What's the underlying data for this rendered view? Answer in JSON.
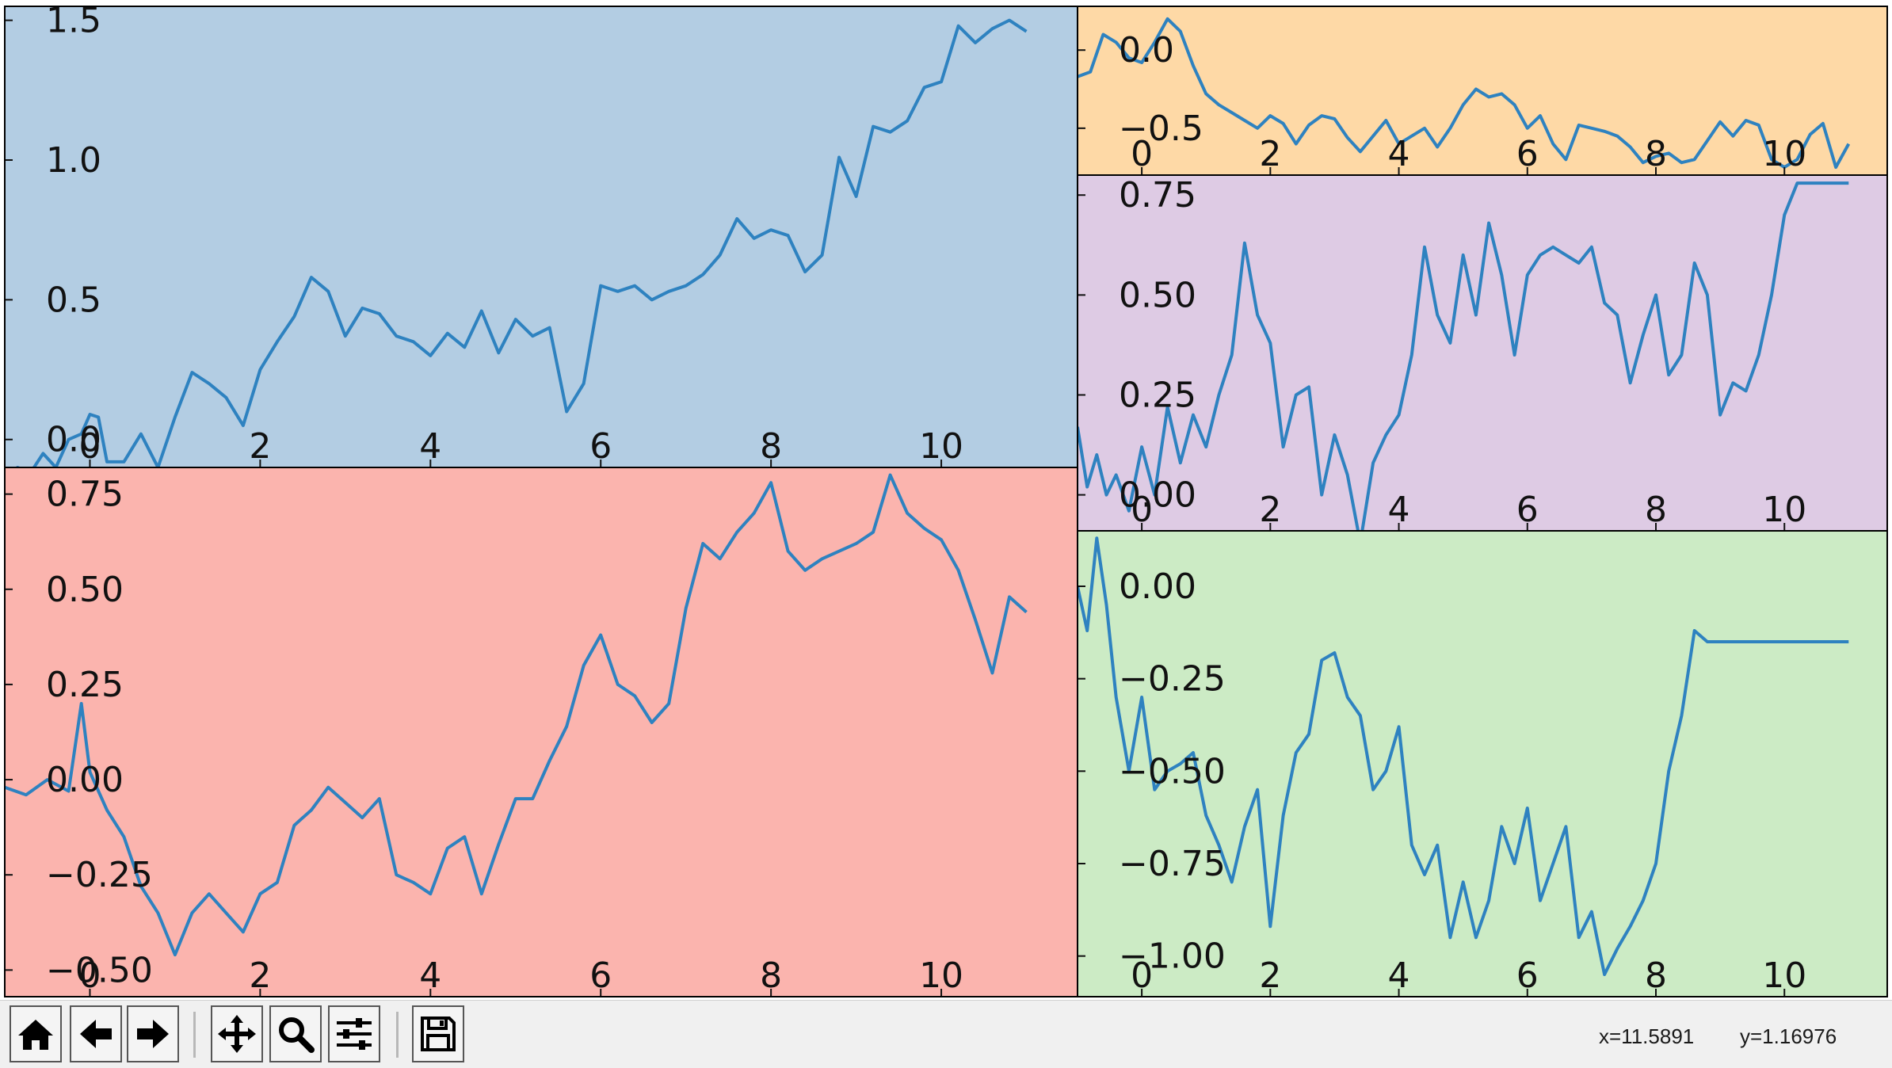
{
  "colors": {
    "line": "#2e82c0",
    "frame": "#000000",
    "ticks": "#111111",
    "toolbar_bg": "#f0f0f0"
  },
  "toolbar": {
    "buttons": [
      {
        "name": "home-button",
        "icon": "home-icon"
      },
      {
        "name": "back-button",
        "icon": "arrow-left-icon"
      },
      {
        "name": "forward-button",
        "icon": "arrow-right-icon"
      },
      {
        "name": "pan-button",
        "icon": "move-icon"
      },
      {
        "name": "zoom-button",
        "icon": "search-icon"
      },
      {
        "name": "configure-subplots-button",
        "icon": "sliders-icon"
      },
      {
        "name": "save-button",
        "icon": "floppy-disk-icon"
      }
    ]
  },
  "status": {
    "x": "x=11.5891",
    "y": "y=1.16976"
  },
  "chart_data": [
    {
      "type": "line",
      "name": "subplot-top-left",
      "background": "#b3cde3",
      "xlim": [
        -1,
        11.6
      ],
      "ylim": [
        -0.1,
        1.55
      ],
      "xticks": [
        0,
        2,
        4,
        6,
        8,
        10
      ],
      "xtick_labels": [
        "0",
        "2",
        "4",
        "6",
        "8",
        "10"
      ],
      "yticks": [
        0.0,
        0.5,
        1.0,
        1.5
      ],
      "ytick_labels": [
        "0.0",
        "0.5",
        "1.0",
        "1.5"
      ],
      "x": [
        -1,
        -0.85,
        -0.7,
        -0.55,
        -0.4,
        -0.25,
        -0.1,
        0,
        0.1,
        0.2,
        0.4,
        0.6,
        0.8,
        1,
        1.2,
        1.4,
        1.6,
        1.8,
        2,
        2.2,
        2.4,
        2.6,
        2.8,
        3,
        3.2,
        3.4,
        3.6,
        3.8,
        4,
        4.2,
        4.4,
        4.6,
        4.8,
        5,
        5.2,
        5.4,
        5.6,
        5.8,
        6,
        6.2,
        6.4,
        6.6,
        6.8,
        7,
        7.2,
        7.4,
        7.6,
        7.8,
        8,
        8.2,
        8.4,
        8.6,
        8.8,
        9,
        9.2,
        9.4,
        9.6,
        9.8,
        10,
        10.2,
        10.4,
        10.6,
        10.8,
        11
      ],
      "y": [
        -0.13,
        -0.1,
        -0.12,
        -0.05,
        -0.1,
        0,
        0.02,
        0.09,
        0.08,
        -0.08,
        -0.08,
        0.02,
        -0.1,
        0.08,
        0.24,
        0.2,
        0.15,
        0.05,
        0.25,
        0.35,
        0.44,
        0.58,
        0.53,
        0.37,
        0.47,
        0.45,
        0.37,
        0.35,
        0.3,
        0.38,
        0.33,
        0.46,
        0.31,
        0.43,
        0.37,
        0.4,
        0.1,
        0.2,
        0.55,
        0.53,
        0.55,
        0.5,
        0.53,
        0.55,
        0.59,
        0.66,
        0.79,
        0.72,
        0.75,
        0.73,
        0.6,
        0.66,
        1.01,
        0.87,
        1.12,
        1.1,
        1.14,
        1.26,
        1.28,
        1.48,
        1.42,
        1.47,
        1.5,
        1.46
      ]
    },
    {
      "type": "line",
      "name": "subplot-bottom-left",
      "background": "#fbb4ae",
      "xlim": [
        -1,
        11.6
      ],
      "ylim": [
        -0.57,
        0.82
      ],
      "xticks": [
        0,
        2,
        4,
        6,
        8,
        10
      ],
      "xtick_labels": [
        "0",
        "2",
        "4",
        "6",
        "8",
        "10"
      ],
      "yticks": [
        -0.5,
        -0.25,
        0.0,
        0.25,
        0.5,
        0.75
      ],
      "ytick_labels": [
        "−0.50",
        "−0.25",
        "0.00",
        "0.25",
        "0.50",
        "0.75"
      ],
      "x": [
        -1,
        -0.75,
        -0.5,
        -0.25,
        -0.1,
        0,
        0.2,
        0.4,
        0.6,
        0.8,
        1,
        1.2,
        1.4,
        1.6,
        1.8,
        2,
        2.2,
        2.4,
        2.6,
        2.8,
        3,
        3.2,
        3.4,
        3.6,
        3.8,
        4,
        4.2,
        4.4,
        4.6,
        4.8,
        5,
        5.2,
        5.4,
        5.6,
        5.8,
        6,
        6.2,
        6.4,
        6.6,
        6.8,
        7,
        7.2,
        7.4,
        7.6,
        7.8,
        8,
        8.2,
        8.4,
        8.6,
        8.8,
        9,
        9.2,
        9.4,
        9.6,
        9.8,
        10,
        10.2,
        10.4,
        10.6,
        10.8,
        11
      ],
      "y": [
        -0.02,
        -0.04,
        0.0,
        -0.03,
        0.2,
        0.02,
        -0.08,
        -0.15,
        -0.28,
        -0.35,
        -0.46,
        -0.35,
        -0.3,
        -0.35,
        -0.4,
        -0.3,
        -0.27,
        -0.12,
        -0.08,
        -0.02,
        -0.06,
        -0.1,
        -0.05,
        -0.25,
        -0.27,
        -0.3,
        -0.18,
        -0.15,
        -0.3,
        -0.17,
        -0.05,
        -0.05,
        0.05,
        0.14,
        0.3,
        0.38,
        0.25,
        0.22,
        0.15,
        0.2,
        0.45,
        0.62,
        0.58,
        0.65,
        0.7,
        0.78,
        0.6,
        0.55,
        0.58,
        0.6,
        0.62,
        0.65,
        0.8,
        0.7,
        0.66,
        0.63,
        0.55,
        0.42,
        0.28,
        0.48,
        0.44
      ]
    },
    {
      "type": "line",
      "name": "subplot-top-right",
      "background": "#fed9a6",
      "xlim": [
        -1,
        11.6
      ],
      "ylim": [
        -0.8,
        0.28
      ],
      "xticks": [
        0,
        2,
        4,
        6,
        8,
        10
      ],
      "xtick_labels": [
        "0",
        "2",
        "4",
        "6",
        "8",
        "10"
      ],
      "yticks": [
        -0.5,
        0.0
      ],
      "ytick_labels": [
        "−0.5",
        "0.0"
      ],
      "x": [
        -1,
        -0.8,
        -0.6,
        -0.4,
        -0.2,
        0,
        0.2,
        0.4,
        0.6,
        0.8,
        1,
        1.2,
        1.4,
        1.6,
        1.8,
        2,
        2.2,
        2.4,
        2.6,
        2.8,
        3,
        3.2,
        3.4,
        3.6,
        3.8,
        4,
        4.2,
        4.4,
        4.6,
        4.8,
        5,
        5.2,
        5.4,
        5.6,
        5.8,
        6,
        6.2,
        6.4,
        6.6,
        6.8,
        7,
        7.2,
        7.4,
        7.6,
        7.8,
        8,
        8.2,
        8.4,
        8.6,
        8.8,
        9,
        9.2,
        9.4,
        9.6,
        9.8,
        10,
        10.2,
        10.4,
        10.6,
        10.8,
        11
      ],
      "y": [
        -0.17,
        -0.14,
        0.1,
        0.05,
        -0.05,
        -0.08,
        0.05,
        0.2,
        0.12,
        -0.1,
        -0.28,
        -0.35,
        -0.4,
        -0.45,
        -0.5,
        -0.42,
        -0.47,
        -0.6,
        -0.48,
        -0.42,
        -0.44,
        -0.56,
        -0.65,
        -0.55,
        -0.45,
        -0.6,
        -0.55,
        -0.5,
        -0.62,
        -0.5,
        -0.35,
        -0.25,
        -0.3,
        -0.28,
        -0.35,
        -0.5,
        -0.42,
        -0.6,
        -0.7,
        -0.48,
        -0.5,
        -0.52,
        -0.55,
        -0.62,
        -0.72,
        -0.68,
        -0.66,
        -0.72,
        -0.7,
        -0.58,
        -0.46,
        -0.55,
        -0.45,
        -0.48,
        -0.7,
        -0.75,
        -0.7,
        -0.54,
        -0.47,
        -0.75,
        -0.6
      ]
    },
    {
      "type": "line",
      "name": "subplot-middle-right",
      "background": "#decbe4",
      "xlim": [
        -1,
        11.6
      ],
      "ylim": [
        -0.09,
        0.8
      ],
      "xticks": [
        0,
        2,
        4,
        6,
        8,
        10
      ],
      "xtick_labels": [
        "0",
        "2",
        "4",
        "6",
        "8",
        "10"
      ],
      "yticks": [
        0.0,
        0.25,
        0.5,
        0.75
      ],
      "ytick_labels": [
        "0.00",
        "0.25",
        "0.50",
        "0.75"
      ],
      "x": [
        -1,
        -0.85,
        -0.7,
        -0.55,
        -0.4,
        -0.2,
        0,
        0.2,
        0.4,
        0.6,
        0.8,
        1,
        1.2,
        1.4,
        1.6,
        1.8,
        2,
        2.2,
        2.4,
        2.6,
        2.8,
        3,
        3.2,
        3.4,
        3.6,
        3.8,
        4,
        4.2,
        4.4,
        4.6,
        4.8,
        5,
        5.2,
        5.4,
        5.6,
        5.8,
        6,
        6.2,
        6.4,
        6.6,
        6.8,
        7,
        7.2,
        7.4,
        7.6,
        7.8,
        8,
        8.2,
        8.4,
        8.6,
        8.8,
        9,
        9.2,
        9.4,
        9.6,
        9.8,
        10,
        10.2,
        10.4,
        10.6,
        10.8,
        11
      ],
      "y": [
        0.17,
        0.02,
        0.1,
        0.0,
        0.05,
        -0.04,
        0.12,
        0.0,
        0.22,
        0.08,
        0.2,
        0.12,
        0.25,
        0.35,
        0.63,
        0.45,
        0.38,
        0.12,
        0.25,
        0.27,
        0.0,
        0.15,
        0.05,
        -0.12,
        0.08,
        0.15,
        0.2,
        0.35,
        0.62,
        0.45,
        0.38,
        0.6,
        0.45,
        0.68,
        0.55,
        0.35,
        0.55,
        0.6,
        0.62,
        0.6,
        0.58,
        0.62,
        0.48,
        0.45,
        0.28,
        0.4,
        0.5,
        0.3,
        0.35,
        0.58,
        0.5,
        0.2,
        0.28,
        0.26,
        0.35,
        0.5,
        0.7,
        0.78,
        0.78,
        0.78,
        0.78,
        0.78
      ]
    },
    {
      "type": "line",
      "name": "subplot-bottom-right",
      "background": "#ccebc5",
      "xlim": [
        -1,
        11.6
      ],
      "ylim": [
        -1.11,
        0.15
      ],
      "xticks": [
        0,
        2,
        4,
        6,
        8,
        10
      ],
      "xtick_labels": [
        "0",
        "2",
        "4",
        "6",
        "8",
        "10"
      ],
      "yticks": [
        -1.0,
        -0.75,
        -0.5,
        -0.25,
        0.0
      ],
      "ytick_labels": [
        "−1.00",
        "−0.75",
        "−0.50",
        "−0.25",
        "0.00"
      ],
      "x": [
        -1,
        -0.85,
        -0.7,
        -0.55,
        -0.4,
        -0.2,
        0,
        0.2,
        0.4,
        0.6,
        0.8,
        1,
        1.2,
        1.4,
        1.6,
        1.8,
        2,
        2.2,
        2.4,
        2.6,
        2.8,
        3,
        3.2,
        3.4,
        3.6,
        3.8,
        4,
        4.2,
        4.4,
        4.6,
        4.8,
        5,
        5.2,
        5.4,
        5.6,
        5.8,
        6,
        6.2,
        6.4,
        6.6,
        6.8,
        7,
        7.2,
        7.4,
        7.6,
        7.8,
        8,
        8.2,
        8.4,
        8.6,
        8.8,
        9,
        9.2,
        9.4,
        9.6,
        9.8,
        10,
        10.2,
        10.4,
        10.6,
        10.8,
        11
      ],
      "y": [
        0.0,
        -0.12,
        0.13,
        -0.05,
        -0.3,
        -0.5,
        -0.3,
        -0.55,
        -0.5,
        -0.48,
        -0.45,
        -0.62,
        -0.7,
        -0.8,
        -0.65,
        -0.55,
        -0.92,
        -0.62,
        -0.45,
        -0.4,
        -0.2,
        -0.18,
        -0.3,
        -0.35,
        -0.55,
        -0.5,
        -0.38,
        -0.7,
        -0.78,
        -0.7,
        -0.95,
        -0.8,
        -0.95,
        -0.85,
        -0.65,
        -0.75,
        -0.6,
        -0.85,
        -0.75,
        -0.65,
        -0.95,
        -0.88,
        -1.05,
        -0.98,
        -0.92,
        -0.85,
        -0.75,
        -0.5,
        -0.35,
        -0.12,
        -0.15,
        -0.15,
        -0.15,
        -0.15,
        -0.15,
        -0.15,
        -0.15,
        -0.15,
        -0.15,
        -0.15,
        -0.15,
        -0.15
      ]
    }
  ]
}
